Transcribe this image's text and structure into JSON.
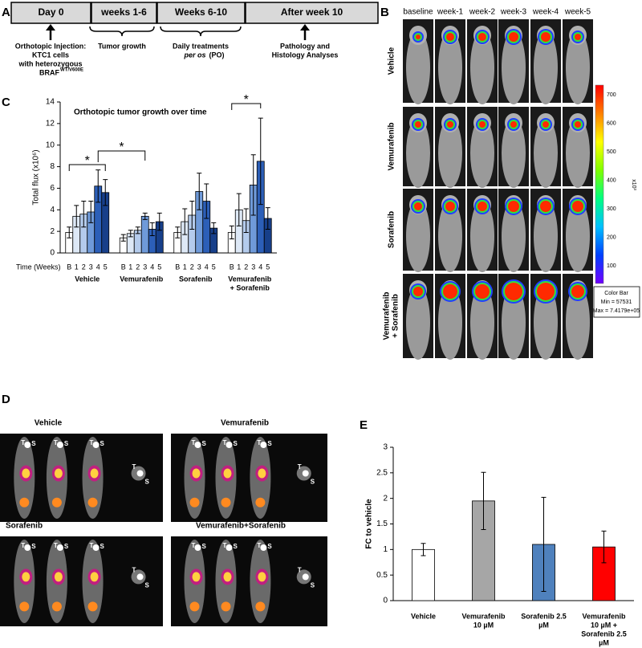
{
  "panel_letters": [
    "A",
    "B",
    "C",
    "D",
    "E"
  ],
  "timeline": {
    "boxes": [
      "Day 0",
      "weeks 1-6",
      "Weeks 6-10",
      "After week 10"
    ],
    "injection": [
      "Orthotopic Injection:",
      "KTC1 cells",
      "with heterozygous"
    ],
    "gene": "BRAF",
    "gene_sup": "WT/V600E",
    "growth": "Tumor growth",
    "treatment": [
      "Daily treatments",
      "per os",
      "(PO)"
    ],
    "analysis": [
      "Pathology and",
      "Histology Analyses"
    ]
  },
  "imaging": {
    "columns": [
      "baseline",
      "week-1",
      "week-2",
      "week-3",
      "week-4",
      "week-5"
    ],
    "rows": [
      "Vehicle",
      "Vemurafenib",
      "Sorafenib",
      [
        "Vemurafenib",
        "+ Sorafenib"
      ]
    ],
    "colorbar_ticks": [
      "700",
      "600",
      "500",
      "400",
      "300",
      "200",
      "100"
    ],
    "colorbar_unit": "x10³",
    "colorbar_box": [
      "Color Bar",
      "Min = 57531",
      "Max = 7.4179e+05"
    ]
  },
  "pet": {
    "titles": [
      "Vehicle",
      "Vemurafenib",
      "Sorafenib",
      "Vemurafenib+Sorafenib"
    ],
    "markers": [
      "T",
      "S"
    ]
  },
  "chart_data": [
    {
      "type": "bar",
      "title": "Orthotopic tumor growth over time",
      "y_label": "Total flux (x10⁶)",
      "x_label": "Time (Weeks)",
      "categories": [
        "Vehicle",
        "Vemurafenib",
        "Sorafenib",
        [
          "Vemurafenib",
          "+ Sorafenib"
        ]
      ],
      "series": [
        {
          "name": "B",
          "color": "#ffffff",
          "values": [
            1.9,
            1.4,
            1.9,
            1.9
          ],
          "errors": [
            0.5,
            0.3,
            0.5,
            0.6
          ]
        },
        {
          "name": "1",
          "color": "#dde8f6",
          "values": [
            3.4,
            1.8,
            2.9,
            4.0
          ],
          "errors": [
            1.0,
            0.3,
            1.2,
            1.5
          ]
        },
        {
          "name": "2",
          "color": "#b4cbec",
          "values": [
            3.6,
            2.1,
            3.5,
            3.0
          ],
          "errors": [
            1.2,
            0.3,
            1.3,
            1.1
          ]
        },
        {
          "name": "3",
          "color": "#6f9ad9",
          "values": [
            3.8,
            3.4,
            5.7,
            6.3
          ],
          "errors": [
            1.0,
            0.3,
            1.7,
            2.8
          ]
        },
        {
          "name": "4",
          "color": "#2c5fb8",
          "values": [
            6.2,
            2.2,
            4.8,
            8.5
          ],
          "errors": [
            1.5,
            0.6,
            1.6,
            4.0
          ]
        },
        {
          "name": "5",
          "color": "#173f8a",
          "values": [
            5.6,
            2.9,
            2.3,
            3.2
          ],
          "errors": [
            1.2,
            0.8,
            0.5,
            1.0
          ]
        }
      ],
      "ylim": [
        0,
        14
      ],
      "yticks": [
        0,
        2,
        4,
        6,
        8,
        10,
        12,
        14
      ],
      "annotations": [
        "*",
        "*",
        "*"
      ]
    },
    {
      "type": "bar",
      "y_label": "FC to vehicle",
      "categories": [
        [
          "Vehicle"
        ],
        [
          "Vemurafenib",
          "10 µM"
        ],
        [
          "Sorafenib 2.5",
          "µM"
        ],
        [
          "Vemurafenib",
          "10 µM +",
          "Sorafenib 2.5",
          "µM"
        ]
      ],
      "values": [
        1.0,
        1.95,
        1.1,
        1.05
      ],
      "errors": [
        0.12,
        0.56,
        0.92,
        0.31
      ],
      "colors": [
        "#ffffff",
        "#a6a6a6",
        "#4f81bd",
        "#ff0000"
      ],
      "ylim": [
        0,
        3
      ],
      "yticks": [
        0,
        0.5,
        1,
        1.5,
        2,
        2.5,
        3
      ]
    }
  ]
}
